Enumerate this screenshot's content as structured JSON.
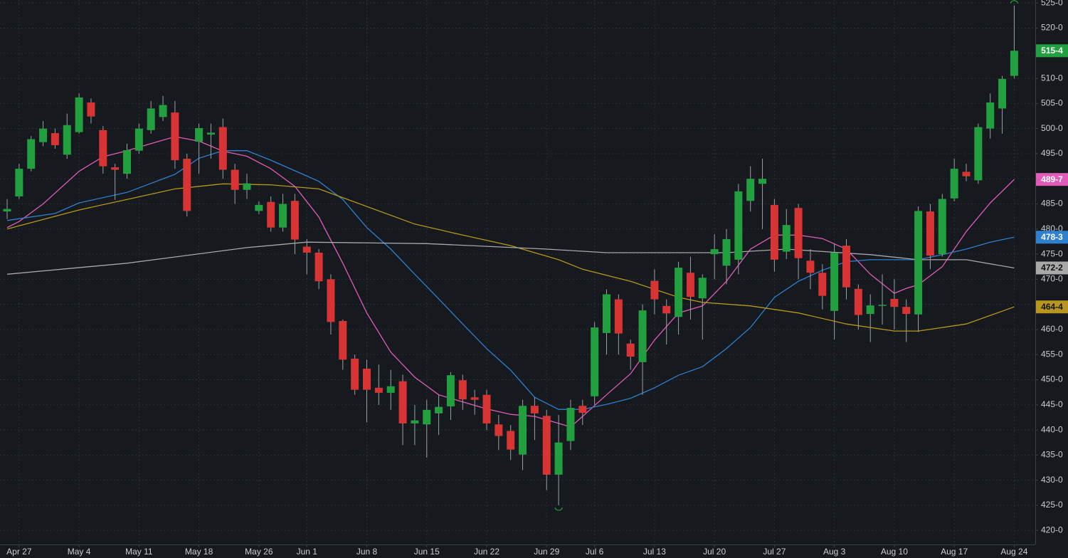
{
  "chart_data": {
    "type": "candlestick",
    "categories": [
      null,
      "Apr 27",
      null,
      null,
      null,
      null,
      "May 4",
      null,
      null,
      null,
      null,
      "May 11",
      null,
      null,
      null,
      null,
      "May 18",
      null,
      null,
      null,
      null,
      "May 26",
      null,
      null,
      null,
      "Jun 1",
      null,
      null,
      null,
      null,
      "Jun 8",
      null,
      null,
      null,
      null,
      "Jun 15",
      null,
      null,
      null,
      null,
      "Jun 22",
      null,
      null,
      null,
      null,
      "Jun 29",
      null,
      null,
      null,
      "Jul 6",
      null,
      null,
      null,
      null,
      "Jul 13",
      null,
      null,
      null,
      null,
      "Jul 20",
      null,
      null,
      null,
      null,
      "Jul 27",
      null,
      null,
      null,
      null,
      "Aug 3",
      null,
      null,
      null,
      null,
      "Aug 10",
      null,
      null,
      null,
      null,
      "Aug 17",
      null,
      null,
      null,
      null,
      "Aug 24"
    ],
    "open": [
      483.5,
      486.5,
      492,
      497.3,
      499.1,
      494.8,
      499.3,
      505.2,
      499.7,
      492.3,
      491,
      495.6,
      499.7,
      502.3,
      503.2,
      494,
      497.4,
      498.8,
      500.3,
      491.8,
      487.8,
      483.6,
      485.4,
      480.3,
      485.6,
      476.5,
      475.3,
      470,
      461.7,
      454.2,
      452.2,
      448.4,
      447.4,
      449.7,
      441.3,
      441.1,
      443.3,
      444.7,
      449.9,
      446.5,
      447,
      441.1,
      439.8,
      435.1,
      444.8,
      442.8,
      431.1,
      437.8,
      444.8,
      446.7,
      459.3,
      466,
      457.2,
      453.5,
      469.7,
      464.7,
      462.5,
      471.3,
      466.2,
      475,
      472.7,
      473.9,
      485.6,
      489,
      484.8,
      475.5,
      484.2,
      473.7,
      471.3,
      463.7,
      476.7,
      468.1,
      463.1,
      464.7,
      466.1,
      464.5,
      463,
      483.5,
      475,
      486.1,
      491.4,
      489.7,
      500,
      504,
      510.5
    ],
    "high": [
      486,
      493,
      498.5,
      501.5,
      500,
      503,
      507,
      506,
      500.5,
      493,
      497,
      501,
      505.5,
      506.5,
      505.5,
      495,
      501,
      501,
      502,
      493,
      491,
      485.5,
      486.5,
      487,
      487,
      478,
      476,
      471,
      462,
      455,
      454,
      453,
      452,
      451,
      445,
      446,
      447,
      451.5,
      451,
      448,
      448,
      443,
      441,
      446,
      446.5,
      444,
      443,
      446,
      446,
      461.5,
      468,
      467,
      458,
      465,
      472,
      466,
      473.5,
      474.5,
      471,
      479,
      480,
      489,
      492.5,
      494,
      486,
      484,
      485,
      476,
      473,
      477,
      478,
      469,
      467,
      471,
      470,
      466,
      484.5,
      485,
      487,
      494,
      493,
      501,
      507,
      510.5,
      524.5
    ],
    "low": [
      482,
      486,
      491.5,
      496.5,
      496,
      494,
      499,
      501,
      491,
      485.8,
      490,
      495,
      499,
      501.5,
      492,
      482.5,
      491,
      494,
      490,
      485,
      486,
      483,
      479.5,
      479.5,
      475,
      471,
      468,
      459,
      452,
      447,
      441.5,
      445,
      444,
      437,
      437,
      434.5,
      439,
      442,
      444,
      443,
      440,
      436,
      434,
      432,
      438,
      428,
      425,
      436,
      441,
      445,
      455,
      455,
      452,
      447,
      463,
      457,
      459,
      462,
      458,
      470,
      469,
      471,
      483.5,
      480,
      471.5,
      474,
      470,
      468,
      464,
      458,
      466,
      460,
      457.5,
      461,
      460,
      457.5,
      459.5,
      472,
      474.5,
      485.5,
      489.5,
      489,
      498,
      499,
      510
    ],
    "close": [
      484,
      492,
      497.9,
      500,
      496.7,
      500.7,
      506.2,
      502.4,
      492.5,
      491.8,
      495.7,
      500,
      504,
      504.7,
      493.7,
      483.6,
      500.1,
      499.2,
      491.8,
      487.8,
      489.1,
      484.8,
      480.3,
      485,
      477.9,
      475.3,
      469.6,
      461.5,
      454,
      448,
      448,
      447.4,
      448.7,
      441.3,
      441.9,
      444,
      444.6,
      450.9,
      446.1,
      446,
      441.3,
      438.8,
      436.1,
      444.8,
      443.3,
      431.1,
      437.5,
      444.4,
      443.4,
      460.4,
      467,
      459.2,
      454.6,
      463.8,
      466,
      463.2,
      472.3,
      466.5,
      470.3,
      476,
      478,
      487.5,
      490,
      490,
      473.9,
      480.8,
      474.2,
      471.3,
      466.7,
      475.3,
      468.4,
      462.9,
      464.8,
      464.9,
      464.5,
      463.1,
      483.6,
      474.7,
      486,
      492,
      490.5,
      500.3,
      505.2,
      509.9,
      515.5
    ],
    "up_color": "#22a040",
    "down_color": "#d83434",
    "last_label": "515-4",
    "ylim": [
      417.2,
      525.6
    ],
    "yticks": [
      {
        "value": 420,
        "label": "420-0"
      },
      {
        "value": 425,
        "label": "425-0"
      },
      {
        "value": 430,
        "label": "430-0"
      },
      {
        "value": 435,
        "label": "435-0"
      },
      {
        "value": 440,
        "label": "440-0"
      },
      {
        "value": 445,
        "label": "445-0"
      },
      {
        "value": 450,
        "label": "450-0"
      },
      {
        "value": 455,
        "label": "455-0"
      },
      {
        "value": 460,
        "label": "460-0"
      },
      {
        "value": 465,
        "label": "465-0"
      },
      {
        "value": 470,
        "label": "470-0"
      },
      {
        "value": 475,
        "label": "475-0"
      },
      {
        "value": 480,
        "label": "480-0"
      },
      {
        "value": 485,
        "label": "485-0"
      },
      {
        "value": 490,
        "label": "490-0"
      },
      {
        "value": 495,
        "label": "495-0"
      },
      {
        "value": 500,
        "label": "500-0"
      },
      {
        "value": 505,
        "label": "505-0"
      },
      {
        "value": 510,
        "label": "510-0"
      },
      {
        "value": 515,
        "label": "515-0"
      },
      {
        "value": 520,
        "label": "520-0"
      },
      {
        "value": 525,
        "label": "525-0"
      }
    ],
    "grid": true,
    "overlays": [
      {
        "color": "#e05cb8",
        "last_label": "489-7",
        "x": [
          0,
          1,
          3,
          6,
          8,
          10,
          12,
          14,
          16,
          18,
          20,
          22,
          24,
          26,
          28,
          30,
          32,
          34,
          36,
          38,
          40,
          42,
          44,
          46,
          47,
          48,
          50,
          52,
          54,
          56,
          58,
          60,
          62,
          64,
          66,
          68,
          70,
          72,
          74,
          75,
          76,
          78,
          80,
          82,
          84
        ],
        "values": [
          480.3,
          481.5,
          485,
          491.5,
          494.4,
          495.6,
          497,
          498.4,
          497.5,
          495.5,
          494.5,
          492,
          488.5,
          482.4,
          473.2,
          463.3,
          455.5,
          450.5,
          447,
          445.6,
          444.2,
          443.1,
          442.7,
          441.3,
          440.6,
          442.7,
          447,
          451.2,
          457.9,
          463.3,
          464.7,
          469.6,
          476,
          478.8,
          478.8,
          478.1,
          476,
          471,
          467.2,
          468.2,
          468.9,
          472.5,
          479.5,
          485.2,
          489.875
        ]
      },
      {
        "color": "#2f80d0",
        "last_label": "478-3",
        "x": [
          0,
          4,
          6,
          10,
          14,
          16,
          18,
          20,
          22,
          24,
          26,
          28,
          30,
          32,
          34,
          36,
          38,
          40,
          42,
          44,
          46,
          48,
          50,
          52,
          54,
          56,
          58,
          60,
          62,
          64,
          66,
          68,
          70,
          72,
          74,
          76,
          78,
          80,
          82,
          84
        ],
        "values": [
          481.7,
          483.1,
          485.2,
          487.3,
          490.9,
          494.1,
          495.6,
          495.6,
          493.7,
          491.6,
          489.5,
          485.9,
          480.3,
          476,
          471,
          466.1,
          461.1,
          456.2,
          451.9,
          446.5,
          444.1,
          444.1,
          445.1,
          446.3,
          448.4,
          450.9,
          452.6,
          456.2,
          460.4,
          466.4,
          469.6,
          471.8,
          473.5,
          473.9,
          473.9,
          473.9,
          474.9,
          476,
          477.4,
          478.375
        ]
      },
      {
        "color": "#b8961e",
        "last_label": "464-4",
        "x": [
          0,
          6,
          10,
          14,
          18,
          22,
          26,
          30,
          34,
          38,
          42,
          46,
          48,
          52,
          56,
          58,
          62,
          66,
          70,
          74,
          76,
          80,
          84
        ],
        "values": [
          480,
          483.8,
          485.9,
          488,
          489,
          488.8,
          488,
          484.5,
          481,
          478.8,
          476.7,
          473.9,
          472,
          469.6,
          466.4,
          465.4,
          464.7,
          463.3,
          461.1,
          459.7,
          459.7,
          461.1,
          464.5
        ]
      },
      {
        "color": "#a8a8a8",
        "last_label": "472-2",
        "x": [
          0,
          10,
          20,
          25,
          35,
          45,
          50,
          60,
          65,
          72,
          76,
          80,
          84
        ],
        "values": [
          471,
          473.2,
          476.3,
          477.4,
          477.1,
          476,
          475.3,
          475.3,
          476,
          474.9,
          473.9,
          473.9,
          472.25
        ]
      }
    ]
  }
}
